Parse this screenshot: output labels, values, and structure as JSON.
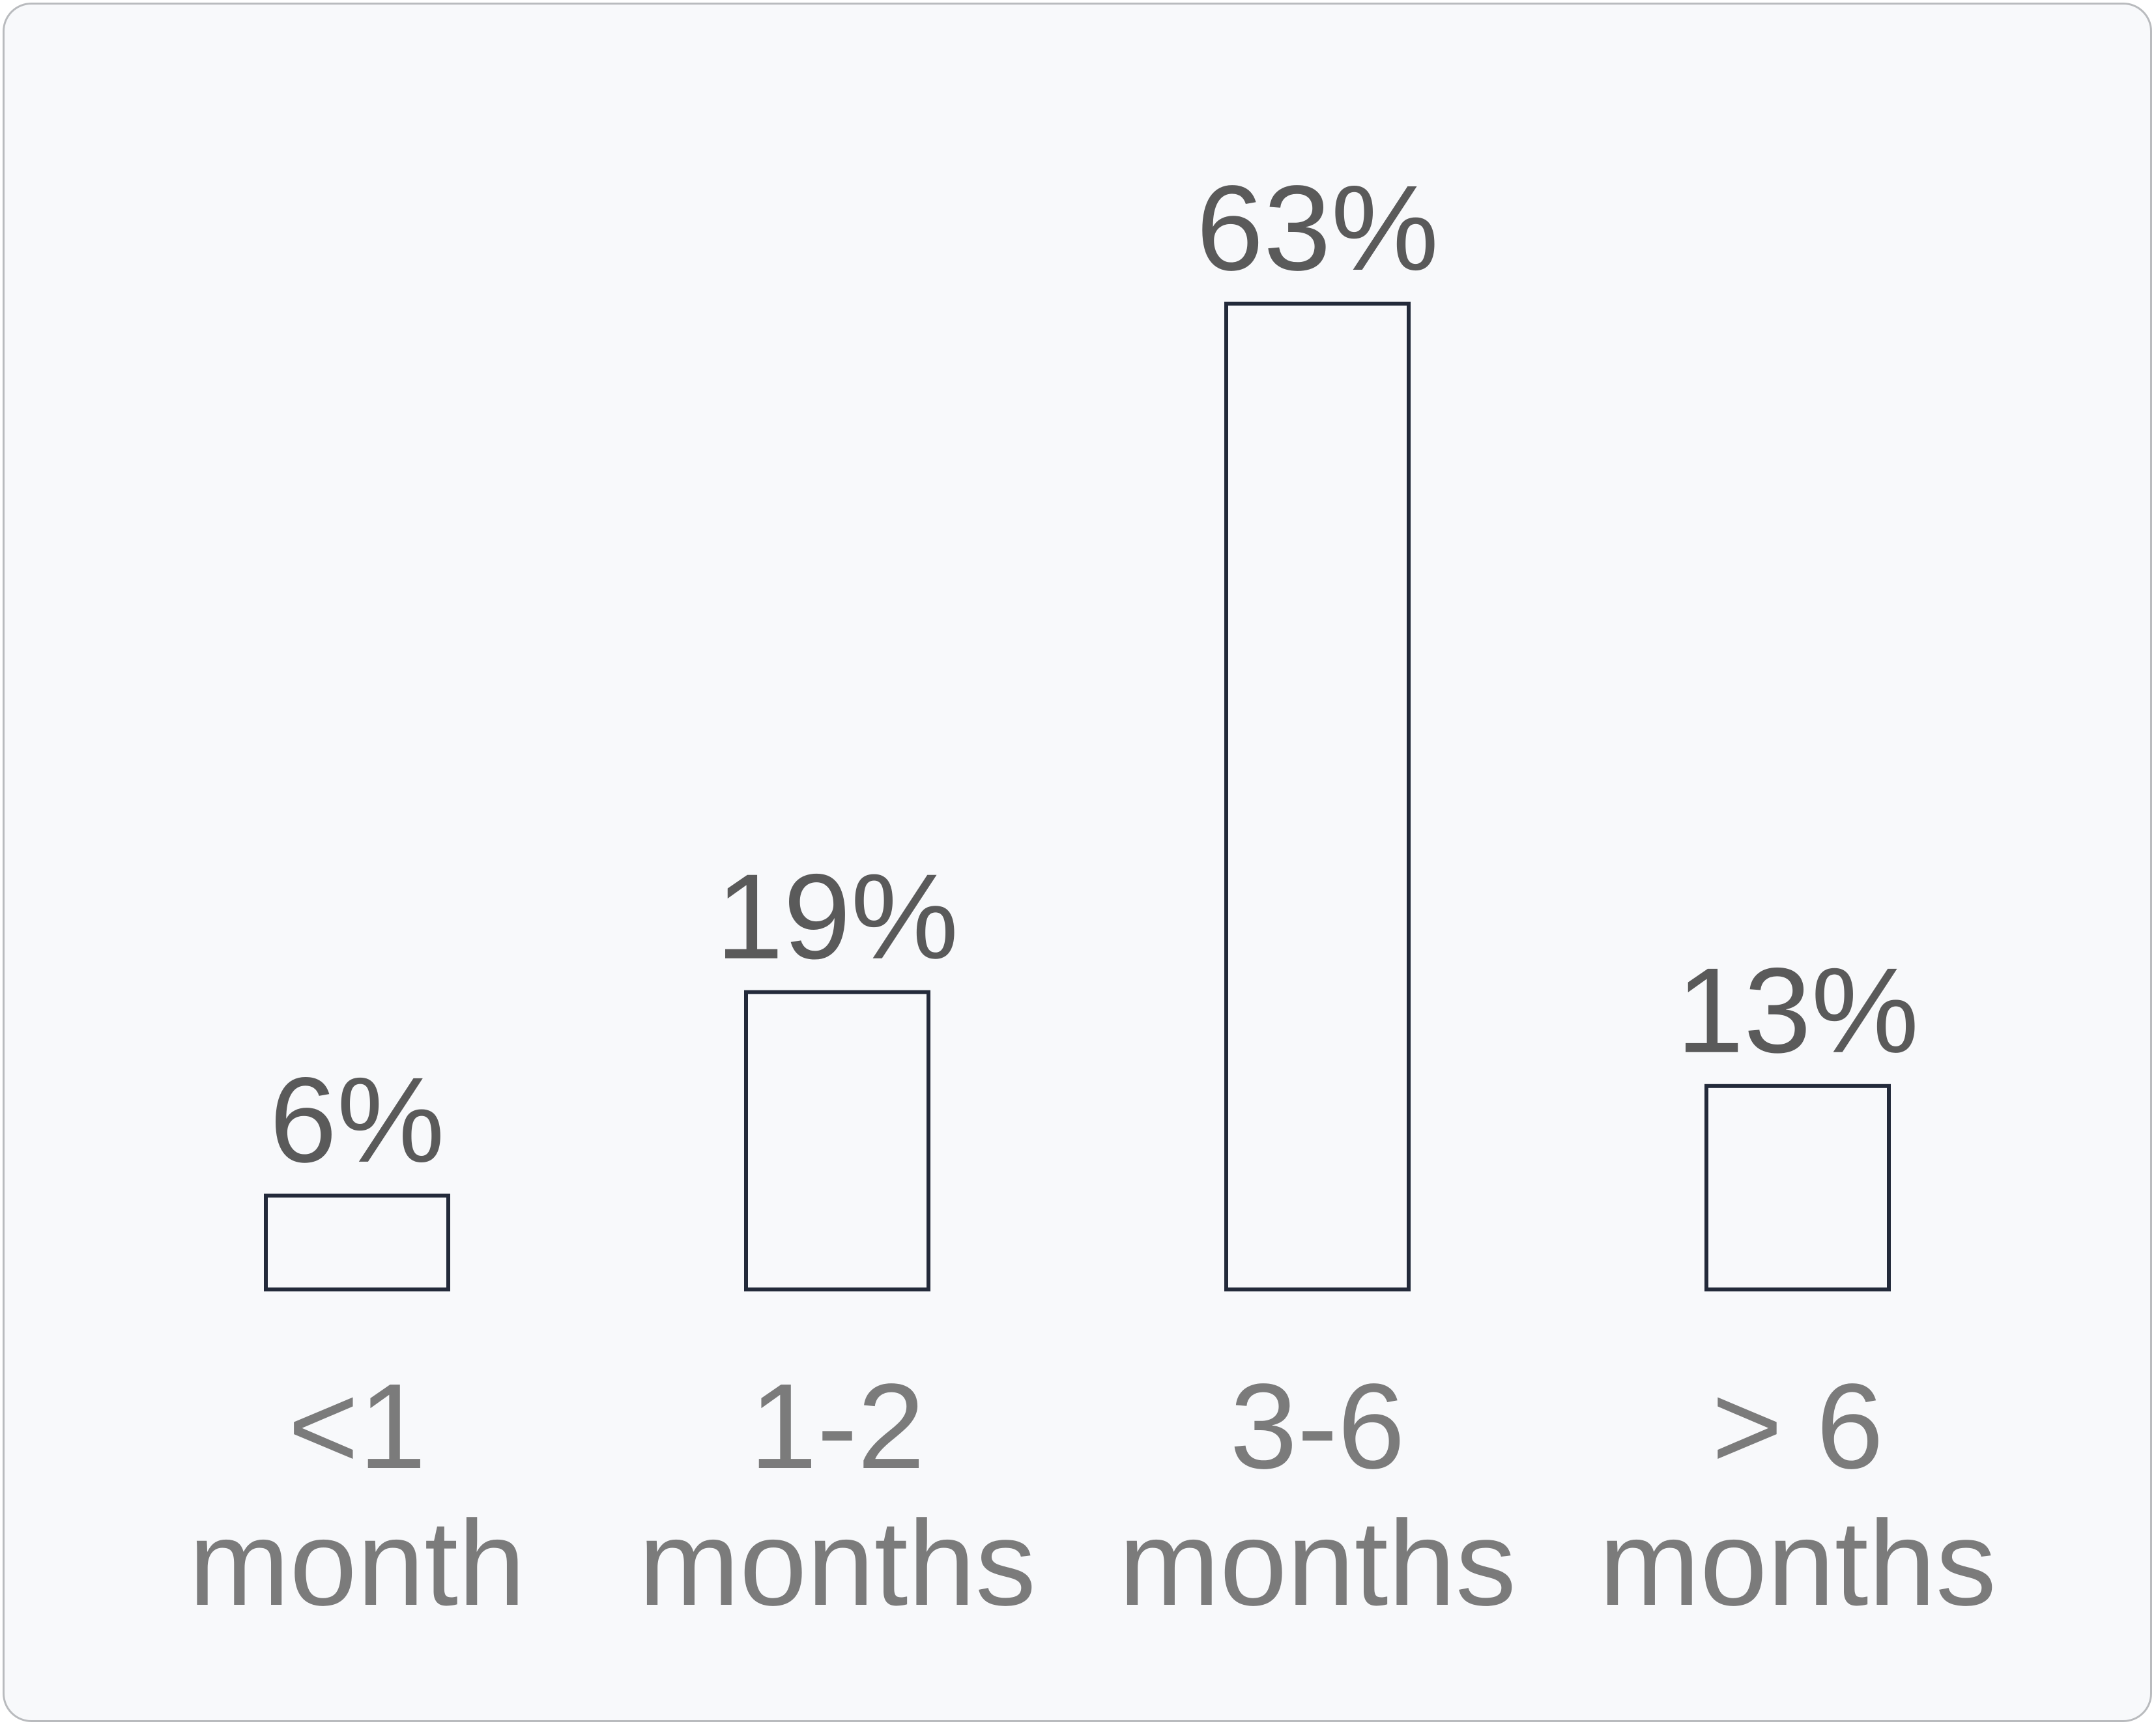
{
  "chart_data": {
    "type": "bar",
    "categories": [
      [
        "<1",
        "month"
      ],
      [
        "1-2",
        "months"
      ],
      [
        "3-6",
        "months"
      ],
      [
        "> 6",
        "months"
      ]
    ],
    "values": [
      6,
      19,
      63,
      13
    ],
    "value_labels": [
      "6%",
      "19%",
      "63%",
      "13%"
    ],
    "title": "",
    "xlabel": "",
    "ylabel": "",
    "ylim": [
      0,
      63
    ],
    "grid": false,
    "legend": "none",
    "colors": {
      "bar_stroke": "#232a3a",
      "bar_fill": "none",
      "value_text": "#5a5a5a",
      "category_text": "#7b7b7b",
      "background": "#f8f9fb",
      "border": "#b9bbbe"
    }
  }
}
